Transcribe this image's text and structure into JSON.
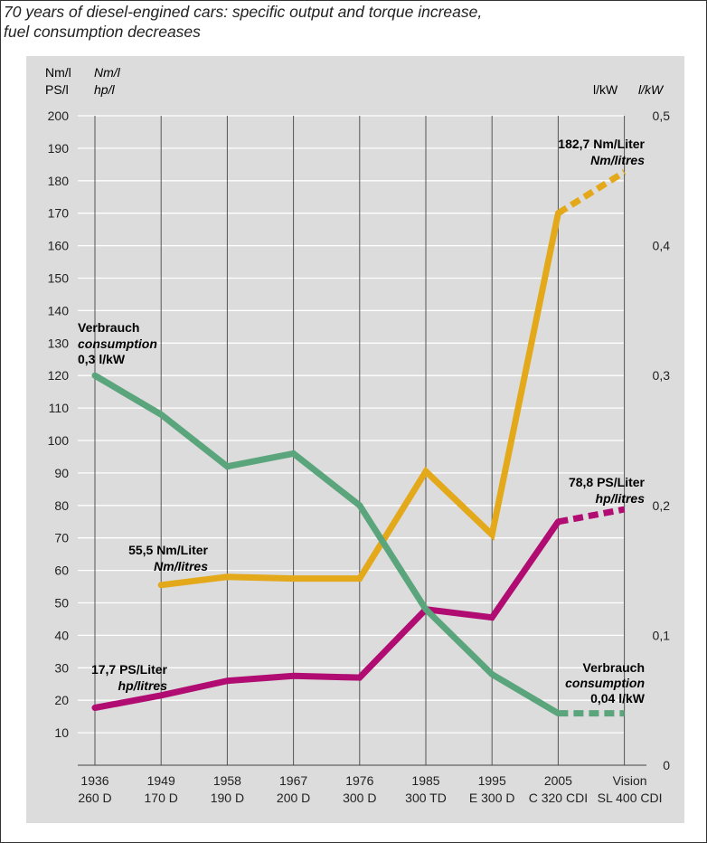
{
  "title_line1": "70 years of diesel-engined cars: specific output and torque increase,",
  "title_line2": "fuel consumption decreases",
  "chart_data": {
    "type": "line",
    "left_axis": {
      "units_line1": "Nm/l",
      "units_line1_en": "Nm/l",
      "units_line2": "PS/l",
      "units_line2_en": "hp/l",
      "ticks": [
        "200",
        "190",
        "180",
        "170",
        "160",
        "150",
        "140",
        "130",
        "120",
        "110",
        "100",
        "90",
        "80",
        "70",
        "60",
        "50",
        "40",
        "30",
        "20",
        "10"
      ],
      "ylim": [
        0,
        200
      ]
    },
    "right_axis": {
      "units": "l/kW",
      "units_en": "l/kW",
      "ticks": [
        "0,5",
        "0,4",
        "0,3",
        "0,2",
        "0,1",
        "0"
      ],
      "ylim": [
        0,
        0.5
      ]
    },
    "categories": [
      {
        "year": "1936",
        "model": "260 D"
      },
      {
        "year": "1949",
        "model": "170 D"
      },
      {
        "year": "1958",
        "model": "190 D"
      },
      {
        "year": "1967",
        "model": "200 D"
      },
      {
        "year": "1976",
        "model": "300 D"
      },
      {
        "year": "1985",
        "model": "300 TD"
      },
      {
        "year": "1995",
        "model": "E 300 D"
      },
      {
        "year": "2005",
        "model": "C 320 CDI"
      },
      {
        "year": "Vision",
        "model": "SL 400 CDI"
      }
    ],
    "series": [
      {
        "name": "torque",
        "axis": "left",
        "color": "#e3a91b",
        "values": [
          null,
          55.5,
          58,
          57.5,
          57.5,
          90.5,
          71,
          170,
          182.7
        ],
        "dashed_from": 7
      },
      {
        "name": "output",
        "axis": "left",
        "color": "#b00c72",
        "values": [
          17.7,
          21.5,
          26,
          27.5,
          27,
          48,
          45.5,
          75,
          78.8
        ],
        "dashed_from": 7
      },
      {
        "name": "consumption",
        "axis": "right",
        "color": "#5aa57c",
        "values": [
          0.3,
          0.27,
          0.23,
          0.24,
          0.2,
          0.12,
          0.07,
          0.04,
          0.04
        ],
        "dashed_from": 7
      }
    ],
    "annotations": {
      "consumption_start": {
        "l1": "Verbrauch",
        "l2": "consumption",
        "l3": "0,3 l/kW"
      },
      "torque_start": {
        "l1": "55,5 Nm/Liter",
        "l2": "Nm/litres"
      },
      "output_start": {
        "l1": "17,7 PS/Liter",
        "l2": "hp/litres"
      },
      "torque_end": {
        "l1": "182,7 Nm/Liter",
        "l2": "Nm/litres"
      },
      "output_end": {
        "l1": "78,8 PS/Liter",
        "l2": "hp/litres"
      },
      "consumption_end": {
        "l1": "Verbrauch",
        "l2": "consumption",
        "l3": "0,04 l/kW"
      }
    }
  }
}
